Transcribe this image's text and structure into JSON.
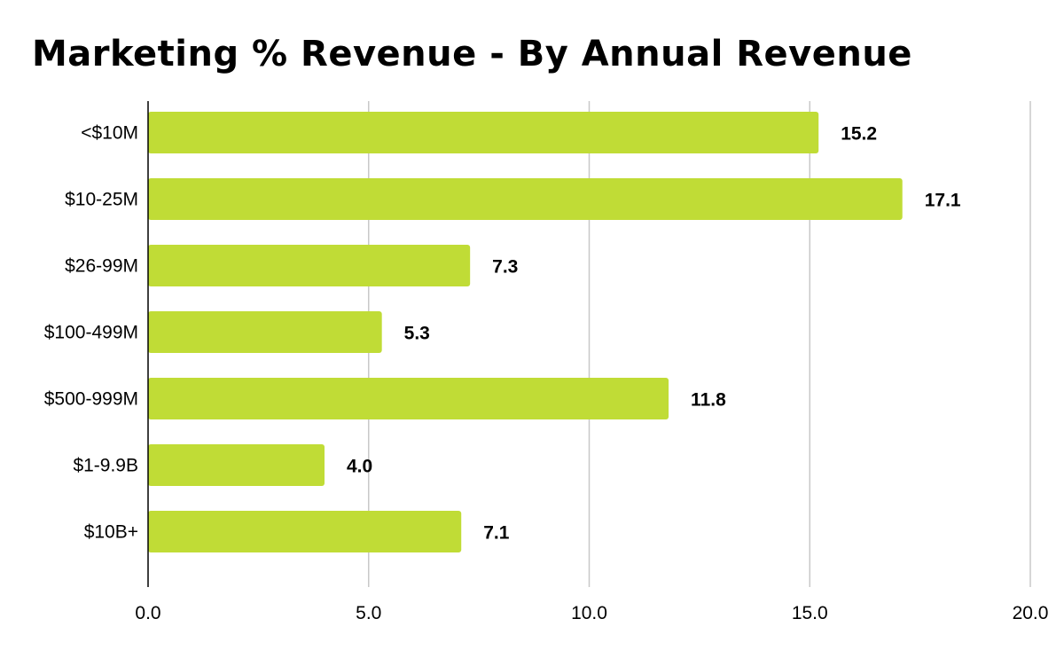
{
  "chart_data": {
    "type": "bar",
    "orientation": "horizontal",
    "title": "Marketing % Revenue - By Annual Revenue",
    "categories": [
      "<$10M",
      "$10-25M",
      "$26-99M",
      "$100-499M",
      "$500-999M",
      "$1-9.9B",
      "$10B+"
    ],
    "values": [
      15.2,
      17.1,
      7.3,
      5.3,
      11.8,
      4.0,
      7.1
    ],
    "value_labels": [
      "15.2",
      "17.1",
      "7.3",
      "5.3",
      "11.8",
      "4.0",
      "7.1"
    ],
    "xlim": [
      0,
      20
    ],
    "xticks": [
      0,
      5,
      10,
      15,
      20
    ],
    "xtick_labels": [
      "0.0",
      "5.0",
      "10.0",
      "15.0",
      "20.0"
    ],
    "xlabel": "",
    "ylabel": "",
    "grid": "vertical",
    "legend": "none",
    "bar_color": "#c0dc36"
  }
}
